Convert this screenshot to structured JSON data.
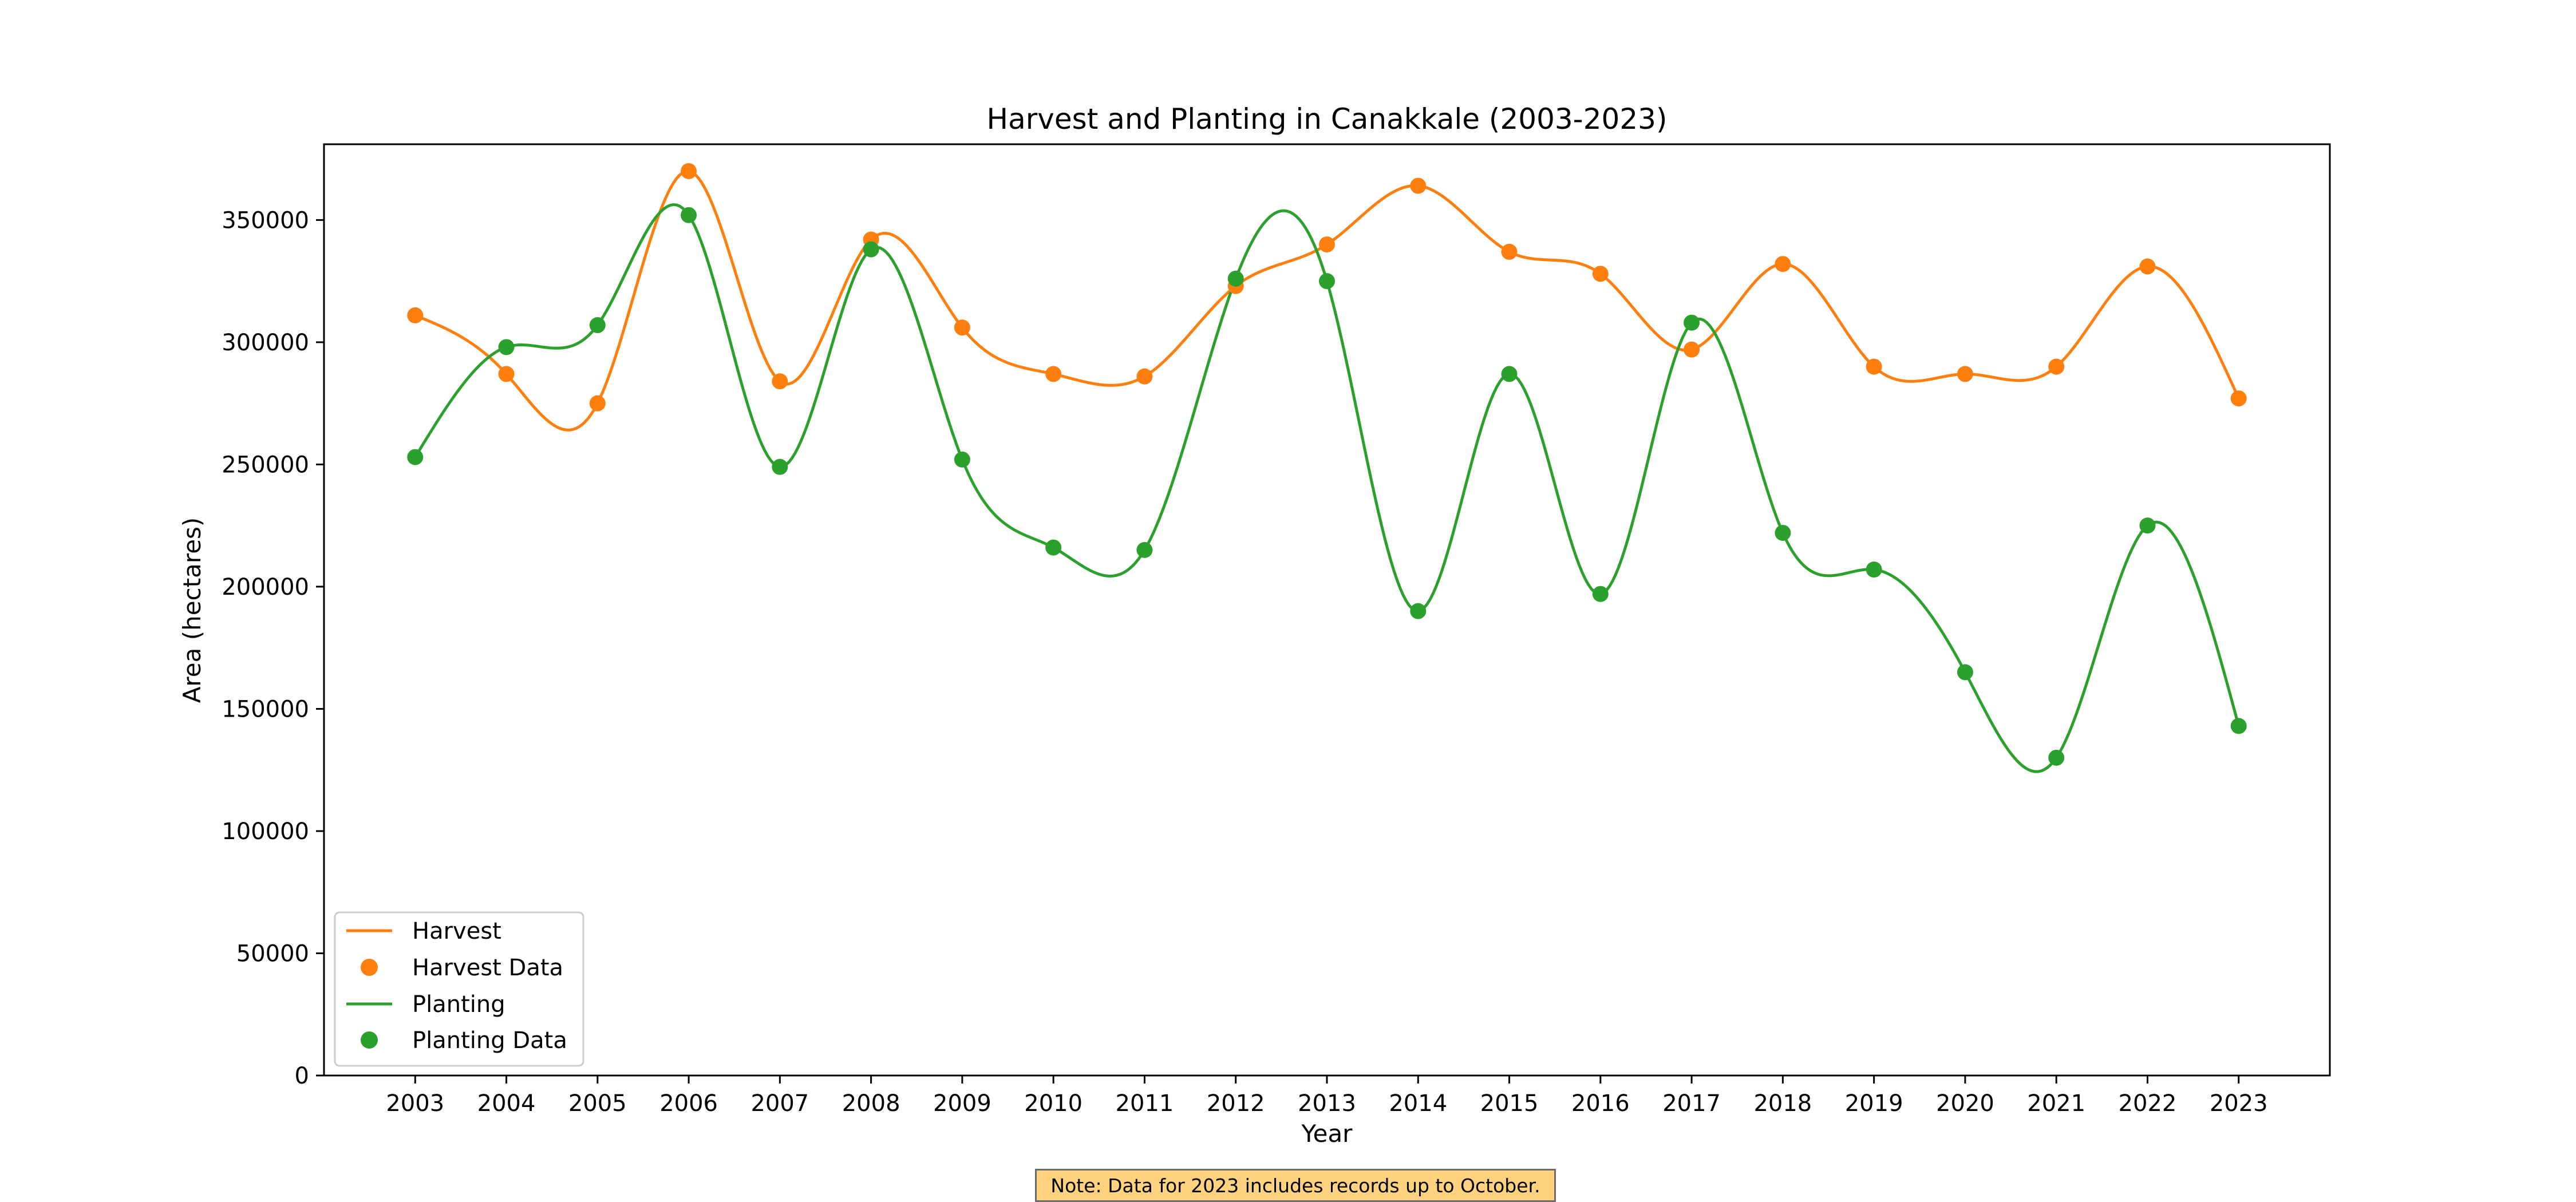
{
  "chart_data": {
    "type": "line",
    "title": "Harvest and Planting in Canakkale (2003-2023)",
    "xlabel": "Year",
    "ylabel": "Area (hectares)",
    "x": [
      2003,
      2004,
      2005,
      2006,
      2007,
      2008,
      2009,
      2010,
      2011,
      2012,
      2013,
      2014,
      2015,
      2016,
      2017,
      2018,
      2019,
      2020,
      2021,
      2022,
      2023
    ],
    "x_tick_labels": [
      "2003",
      "2004",
      "2005",
      "2006",
      "2007",
      "2008",
      "2009",
      "2010",
      "2011",
      "2012",
      "2013",
      "2014",
      "2015",
      "2016",
      "2017",
      "2018",
      "2019",
      "2020",
      "2021",
      "2022",
      "2023"
    ],
    "y_ticks": [
      0,
      50000,
      100000,
      150000,
      200000,
      250000,
      300000,
      350000
    ],
    "y_tick_labels": [
      "0",
      "50000",
      "100000",
      "150000",
      "200000",
      "250000",
      "300000",
      "350000"
    ],
    "ylim": [
      0,
      381000
    ],
    "xlim": [
      2002,
      2024
    ],
    "grid": false,
    "legend_position": "lower-left",
    "series": [
      {
        "name": "Harvest",
        "line_label": "Harvest",
        "marker_label": "Harvest Data",
        "color": "#ff7f0e",
        "values": [
          311000,
          287000,
          275000,
          370000,
          284000,
          342000,
          306000,
          287000,
          286000,
          323000,
          340000,
          364000,
          337000,
          328000,
          297000,
          332000,
          290000,
          287000,
          290000,
          331000,
          277000
        ]
      },
      {
        "name": "Planting",
        "line_label": "Planting",
        "marker_label": "Planting Data",
        "color": "#2ca02c",
        "values": [
          253000,
          298000,
          307000,
          352000,
          249000,
          338000,
          252000,
          216000,
          215000,
          326000,
          325000,
          190000,
          287000,
          197000,
          308000,
          222000,
          207000,
          165000,
          130000,
          225000,
          143000
        ]
      }
    ],
    "annotation": "Note: Data for 2023 includes records up to October."
  }
}
